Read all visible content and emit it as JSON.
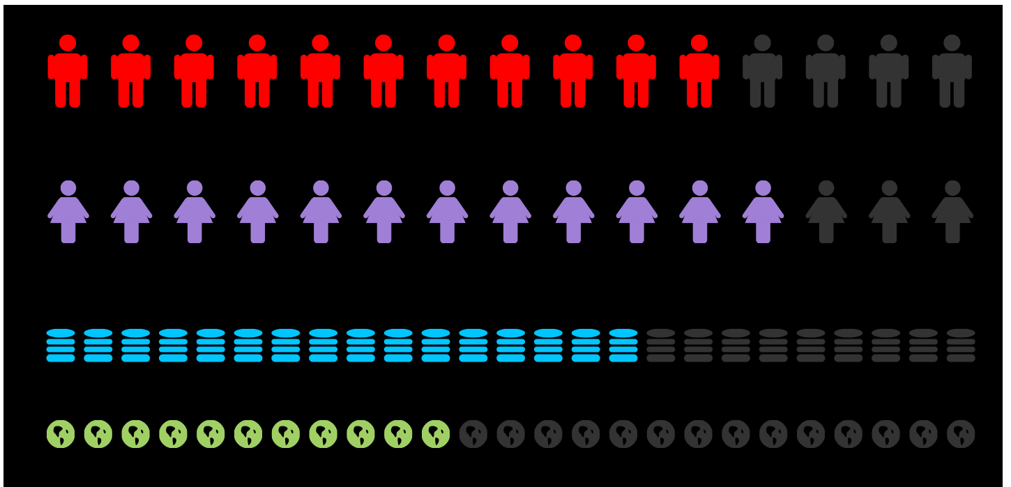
{
  "chart_data": {
    "type": "pictograph",
    "inactive_color": "#333333",
    "background": "#000000",
    "rows": [
      {
        "icon": "man-icon",
        "total": 15,
        "filled": 11,
        "color": "#ff0000"
      },
      {
        "icon": "woman-icon",
        "total": 15,
        "filled": 12,
        "color": "#a07fd6"
      },
      {
        "icon": "database-icon",
        "total": 25,
        "filled": 16,
        "color": "#00c5ff"
      },
      {
        "icon": "globe-icon",
        "total": 25,
        "filled": 11,
        "color": "#a0d064"
      }
    ]
  }
}
